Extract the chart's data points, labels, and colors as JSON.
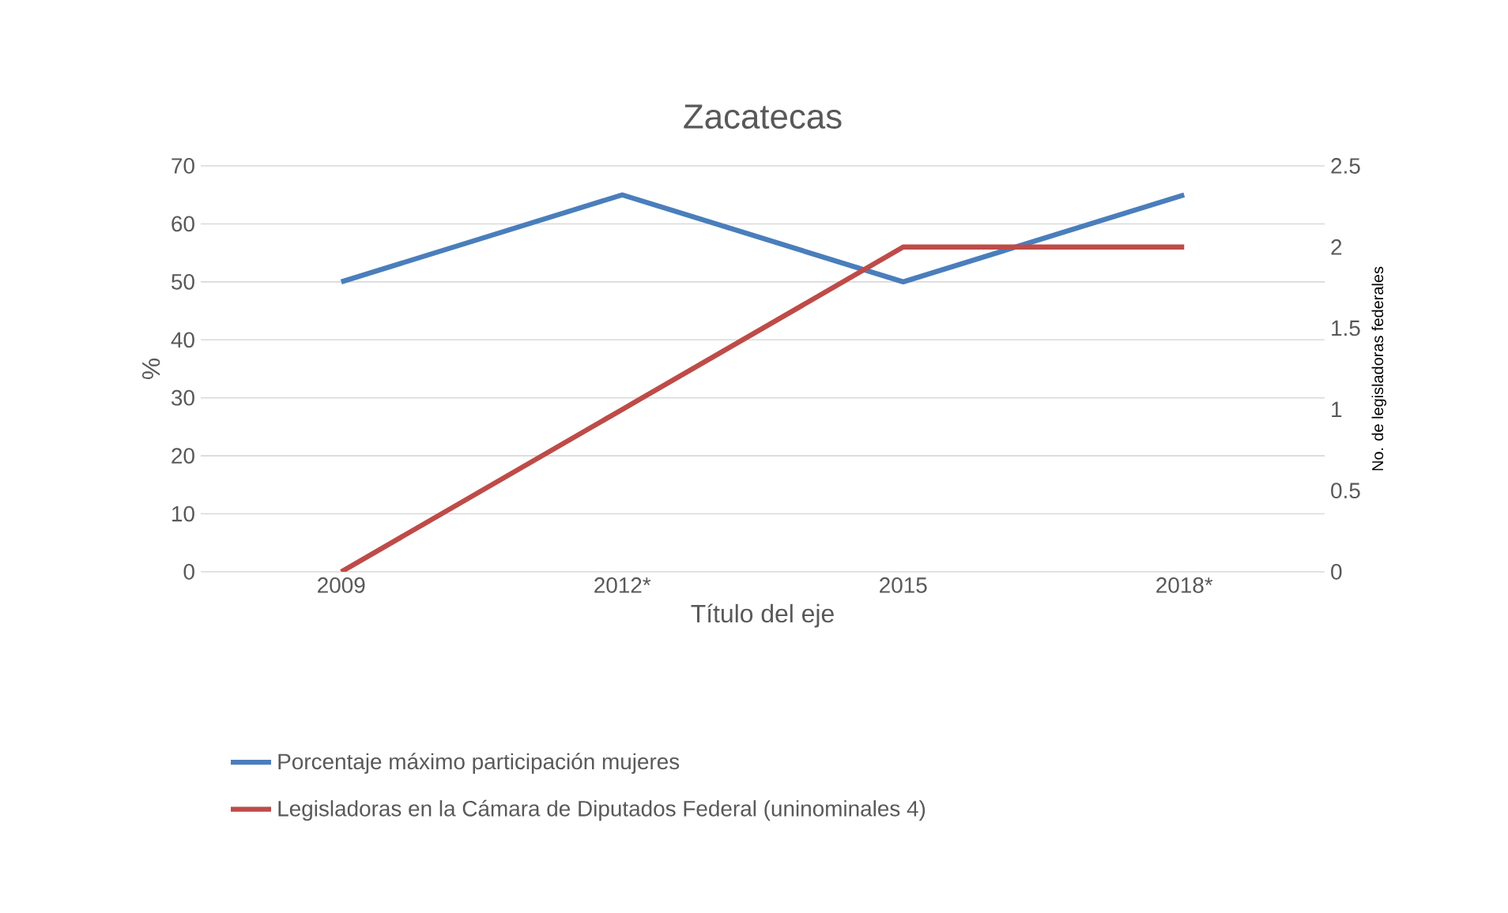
{
  "chart_data": {
    "type": "line",
    "title": "Zacatecas",
    "xlabel": "Título del eje",
    "ylabel": "%",
    "y2label": "No. de legisladoras federales",
    "categories": [
      "2009",
      "2012*",
      "2015",
      "2018*"
    ],
    "series": [
      {
        "name": "Porcentaje máximo participación mujeres",
        "color": "#4a7ebb",
        "values": [
          50,
          65,
          50,
          65
        ]
      },
      {
        "name": "Legisladoras en la Cámara de Diputados Federal (uninominales 4)",
        "color": "#be4b48",
        "axis": "y2",
        "values": [
          0,
          1,
          2,
          2
        ]
      }
    ],
    "ylim": [
      0,
      70
    ],
    "yticks": [
      0,
      10,
      20,
      30,
      40,
      50,
      60,
      70
    ],
    "y2lim": [
      0,
      2.5
    ],
    "y2ticks": [
      0,
      0.5,
      1,
      1.5,
      2,
      2.5
    ],
    "grid": "y",
    "legend": "bottom"
  }
}
